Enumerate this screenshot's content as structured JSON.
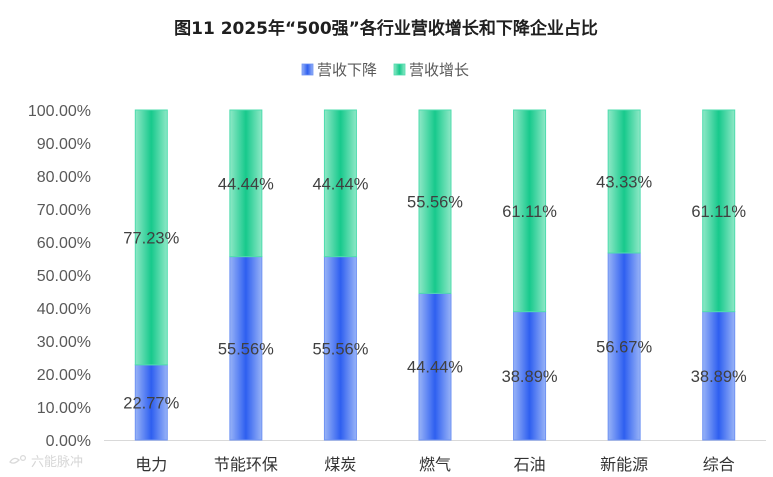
{
  "chart_data": {
    "type": "bar",
    "stacked": true,
    "percent_axis": true,
    "title": "图11   2025年“500强”各行业营收增长和下降企业占比",
    "categories": [
      "电力",
      "节能环保",
      "煤炭",
      "燃气",
      "石油",
      "新能源",
      "综合"
    ],
    "series": [
      {
        "name": "营收下降",
        "values": [
          22.77,
          55.56,
          55.56,
          44.44,
          38.89,
          56.67,
          38.89
        ],
        "color": "#3d6cf0"
      },
      {
        "name": "营收增长",
        "values": [
          77.23,
          44.44,
          44.44,
          55.56,
          61.11,
          43.33,
          61.11
        ],
        "color": "#2fd29a"
      }
    ],
    "ylim": [
      0,
      100
    ],
    "y_ticks": [
      "0.00%",
      "10.00%",
      "20.00%",
      "30.00%",
      "40.00%",
      "50.00%",
      "60.00%",
      "70.00%",
      "80.00%",
      "90.00%",
      "100.00%"
    ],
    "legend_position": "top-center",
    "grid": false,
    "xlabel": "",
    "ylabel": ""
  },
  "watermark": {
    "text": "六能脉冲"
  }
}
